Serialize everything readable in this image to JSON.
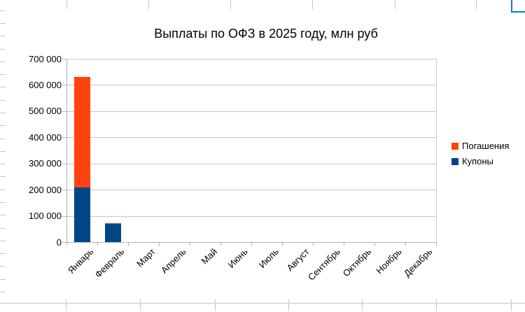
{
  "colors": {
    "series_redemptions": "#FF420E",
    "series_coupons": "#004586",
    "chart_gridline": "#c9c9c9",
    "chart_axis": "#b3b3b3",
    "sheet_gridline": "#c6c6c6",
    "cell_selection": "#0b79d0"
  },
  "chart_data": {
    "type": "bar",
    "stacked": true,
    "title": "Выплаты по ОФЗ в 2025 году, млн руб",
    "categories": [
      "Январь",
      "Февраль",
      "Март",
      "Апрель",
      "Май",
      "Июнь",
      "Июль",
      "Август",
      "Сентябрь",
      "Октябрь",
      "Ноябрь",
      "Декабрь"
    ],
    "series": [
      {
        "name": "Купоны",
        "color": "#004586",
        "values": [
          208000,
          69000,
          0,
          0,
          0,
          0,
          0,
          0,
          0,
          0,
          0,
          0
        ]
      },
      {
        "name": "Погашения",
        "color": "#FF420E",
        "values": [
          422000,
          2000,
          0,
          0,
          0,
          0,
          0,
          0,
          0,
          0,
          0,
          0
        ]
      }
    ],
    "yaxis": {
      "min": 0,
      "max": 700000,
      "ticks": [
        {
          "value": 0,
          "label": "0"
        },
        {
          "value": 100000,
          "label": "100 000"
        },
        {
          "value": 200000,
          "label": "200 000"
        },
        {
          "value": 300000,
          "label": "300 000"
        },
        {
          "value": 400000,
          "label": "400 000"
        },
        {
          "value": 500000,
          "label": "500 000"
        },
        {
          "value": 600000,
          "label": "600 000"
        },
        {
          "value": 700000,
          "label": "700 000"
        }
      ]
    },
    "grid": "horizontal",
    "legend": {
      "position": "right",
      "entries": [
        {
          "label": "Погашения",
          "color": "#FF420E"
        },
        {
          "label": "Купоны",
          "color": "#004586"
        }
      ]
    }
  }
}
